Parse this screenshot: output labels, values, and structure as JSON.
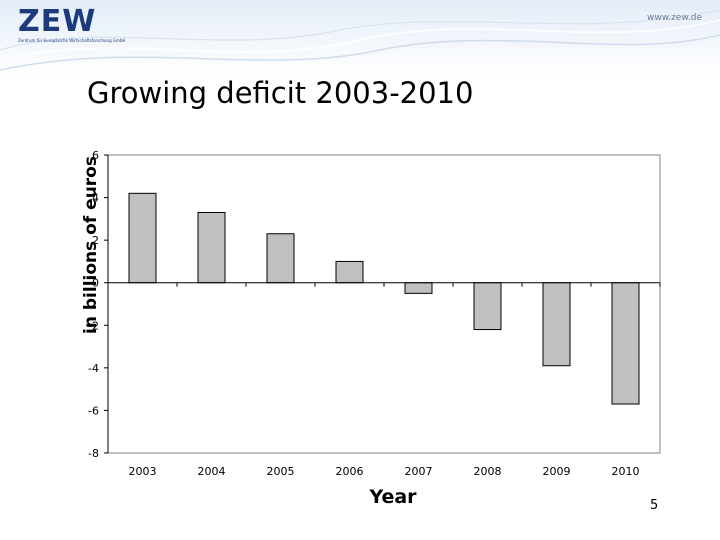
{
  "header": {
    "logo_text": "ZEW",
    "logo_tagline": "Zentrum für Europäische Wirtschaftsforschung GmbH",
    "url": "www.zew.de"
  },
  "slide": {
    "title": "Growing deficit 2003-2010",
    "page_number": "5"
  },
  "chart_data": {
    "type": "bar",
    "title": "",
    "xlabel": "Year",
    "ylabel": "in billions of euros",
    "categories": [
      "2003",
      "2004",
      "2005",
      "2006",
      "2007",
      "2008",
      "2009",
      "2010"
    ],
    "values": [
      4.2,
      3.3,
      2.3,
      1.0,
      -0.5,
      -2.2,
      -3.9,
      -5.7
    ],
    "ylim": [
      -8,
      6
    ],
    "yticks": [
      6,
      4,
      2,
      0,
      -2,
      -4,
      -6,
      -8
    ],
    "grid": false,
    "legend": "none",
    "bar_color": "#c0c0c0",
    "bar_edge_color": "#000000"
  }
}
